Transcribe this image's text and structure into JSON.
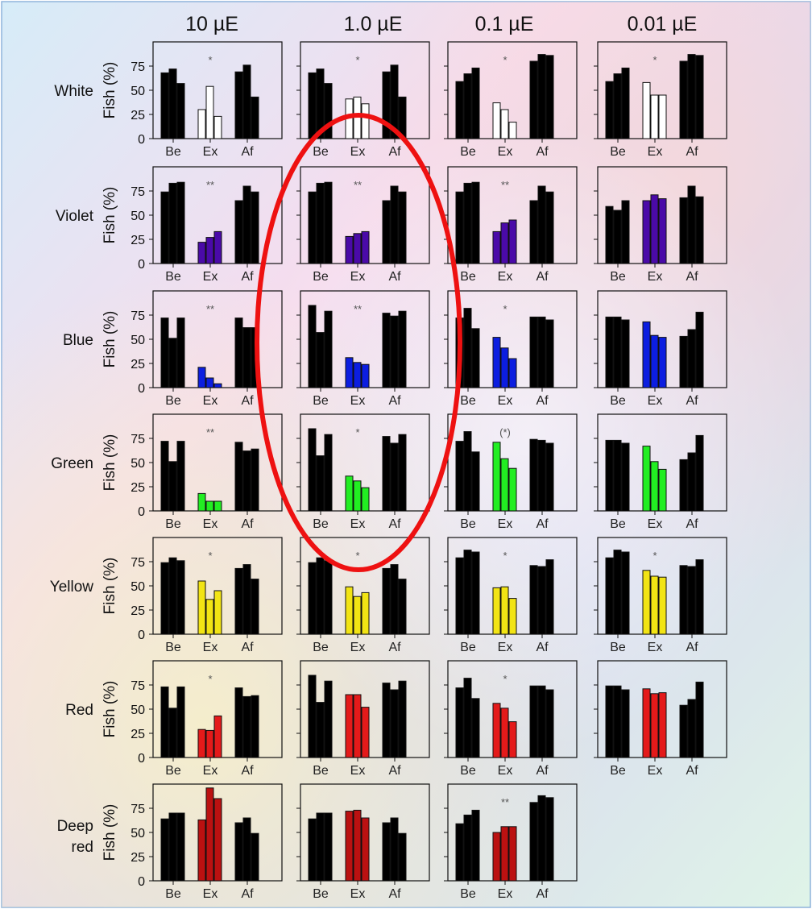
{
  "chart_data": {
    "type": "bar",
    "column_headers": [
      "10 µE",
      "1.0 µE",
      "0.1 µE",
      "0.01 µE"
    ],
    "row_labels": [
      [
        "White"
      ],
      [
        "Violet"
      ],
      [
        "Blue"
      ],
      [
        "Green"
      ],
      [
        "Yellow"
      ],
      [
        "Red"
      ],
      [
        "Deep",
        "red"
      ]
    ],
    "ylabel": "Fish (%)",
    "y_ticks": [
      "0",
      "25",
      "50",
      "75"
    ],
    "ylim": [
      0,
      100
    ],
    "group_labels": [
      "Be",
      "Ex",
      "Af"
    ],
    "colors": {
      "before_after": "#000000",
      "White": "#ffffff",
      "Violet": "#4a0aa8",
      "Blue": "#0c1ee0",
      "Green": "#22ee22",
      "Yellow": "#f2e414",
      "Red": "#e41a1a",
      "Deep red": "#bb1111"
    },
    "panels": [
      [
        {
          "be": [
            68,
            72,
            57
          ],
          "ex": [
            30,
            54,
            23
          ],
          "af": [
            69,
            76,
            43
          ],
          "sig": "*"
        },
        {
          "be": [
            68,
            72,
            57
          ],
          "ex": [
            41,
            43,
            36
          ],
          "af": [
            69,
            76,
            43
          ],
          "sig": "*"
        },
        {
          "be": [
            59,
            67,
            73
          ],
          "ex": [
            37,
            30,
            17
          ],
          "af": [
            80,
            87,
            86
          ],
          "sig": "*"
        },
        {
          "be": [
            59,
            67,
            73
          ],
          "ex": [
            58,
            45,
            45
          ],
          "af": [
            80,
            87,
            86
          ],
          "sig": "*"
        }
      ],
      [
        {
          "be": [
            74,
            83,
            84
          ],
          "ex": [
            22,
            27,
            33
          ],
          "af": [
            65,
            80,
            74
          ],
          "sig": "**"
        },
        {
          "be": [
            74,
            83,
            84
          ],
          "ex": [
            28,
            31,
            33
          ],
          "af": [
            65,
            80,
            74
          ],
          "sig": "**"
        },
        {
          "be": [
            74,
            83,
            84
          ],
          "ex": [
            33,
            42,
            45
          ],
          "af": [
            65,
            80,
            74
          ],
          "sig": "**"
        },
        {
          "be": [
            59,
            55,
            65
          ],
          "ex": [
            65,
            71,
            67
          ],
          "af": [
            68,
            80,
            69
          ],
          "sig": ""
        }
      ],
      [
        {
          "be": [
            72,
            51,
            72
          ],
          "ex": [
            21,
            10,
            4
          ],
          "af": [
            72,
            62,
            62
          ],
          "sig": "**"
        },
        {
          "be": [
            85,
            57,
            79
          ],
          "ex": [
            31,
            26,
            24
          ],
          "af": [
            77,
            74,
            79
          ],
          "sig": "**"
        },
        {
          "be": [
            72,
            82,
            61
          ],
          "ex": [
            52,
            41,
            30
          ],
          "af": [
            73,
            73,
            70
          ],
          "sig": "*"
        },
        {
          "be": [
            73,
            73,
            70
          ],
          "ex": [
            68,
            54,
            52
          ],
          "af": [
            53,
            60,
            78
          ],
          "sig": ""
        }
      ],
      [
        {
          "be": [
            72,
            51,
            72
          ],
          "ex": [
            18,
            10,
            10
          ],
          "af": [
            71,
            62,
            64
          ],
          "sig": "**"
        },
        {
          "be": [
            85,
            57,
            79
          ],
          "ex": [
            36,
            31,
            24
          ],
          "af": [
            77,
            70,
            79
          ],
          "sig": "*"
        },
        {
          "be": [
            72,
            82,
            61
          ],
          "ex": [
            71,
            54,
            44
          ],
          "af": [
            74,
            73,
            70
          ],
          "sig": "(*)"
        },
        {
          "be": [
            73,
            73,
            70
          ],
          "ex": [
            67,
            51,
            43
          ],
          "af": [
            53,
            60,
            78
          ],
          "sig": ""
        }
      ],
      [
        {
          "be": [
            74,
            79,
            76
          ],
          "ex": [
            55,
            36,
            45
          ],
          "af": [
            68,
            72,
            57
          ],
          "sig": "*"
        },
        {
          "be": [
            74,
            79,
            76
          ],
          "ex": [
            49,
            39,
            43
          ],
          "af": [
            68,
            72,
            57
          ],
          "sig": "*"
        },
        {
          "be": [
            79,
            87,
            85
          ],
          "ex": [
            48,
            49,
            37
          ],
          "af": [
            71,
            70,
            77
          ],
          "sig": "*"
        },
        {
          "be": [
            79,
            87,
            85
          ],
          "ex": [
            66,
            60,
            59
          ],
          "af": [
            71,
            70,
            77
          ],
          "sig": "*"
        }
      ],
      [
        {
          "be": [
            73,
            51,
            73
          ],
          "ex": [
            29,
            28,
            43
          ],
          "af": [
            72,
            63,
            64
          ],
          "sig": "*"
        },
        {
          "be": [
            85,
            57,
            79
          ],
          "ex": [
            65,
            65,
            52
          ],
          "af": [
            77,
            70,
            79
          ],
          "sig": ""
        },
        {
          "be": [
            72,
            82,
            61
          ],
          "ex": [
            56,
            51,
            37
          ],
          "af": [
            74,
            74,
            70
          ],
          "sig": "*"
        },
        {
          "be": [
            74,
            74,
            70
          ],
          "ex": [
            71,
            66,
            67
          ],
          "af": [
            54,
            60,
            78
          ],
          "sig": ""
        }
      ],
      [
        {
          "be": [
            64,
            70,
            70
          ],
          "ex": [
            63,
            96,
            85
          ],
          "af": [
            60,
            65,
            49
          ],
          "sig": ""
        },
        {
          "be": [
            64,
            70,
            70
          ],
          "ex": [
            72,
            73,
            65
          ],
          "af": [
            60,
            65,
            49
          ],
          "sig": ""
        },
        {
          "be": [
            59,
            68,
            73
          ],
          "ex": [
            50,
            56,
            56
          ],
          "af": [
            81,
            88,
            86
          ],
          "sig": "**"
        },
        null
      ]
    ]
  }
}
